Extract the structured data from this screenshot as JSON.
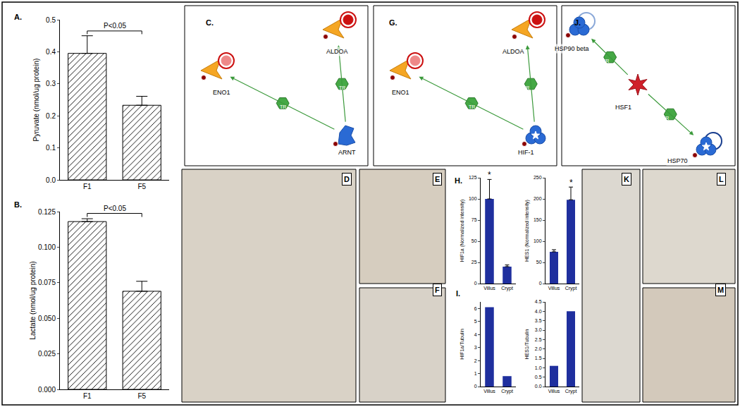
{
  "panel_labels": [
    "A.",
    "B.",
    "C.",
    "D",
    "E",
    "F",
    "G.",
    "H.",
    "I.",
    "J.",
    "K",
    "L",
    "M"
  ],
  "chart_data": [
    {
      "type": "bar",
      "categories": [
        "F1",
        "F5"
      ],
      "values": [
        0.395,
        0.233
      ],
      "errors": [
        0.055,
        0.028
      ],
      "color": "#ffffff",
      "ylabel": "Pyruvate (nmol/ug protein)",
      "ylim": [
        0,
        0.5
      ],
      "yticks": [
        {
          "value": 0,
          "label": "0.0"
        },
        0.1,
        0.2,
        0.3,
        0.4,
        0.5
      ],
      "annotations": [
        {
          "text": "P<0.05",
          "span": [
            "F1",
            "F5"
          ]
        }
      ]
    },
    {
      "type": "bar",
      "categories": [
        "F1",
        "F5"
      ],
      "values": [
        0.118,
        0.069
      ],
      "errors": [
        0.002,
        0.007
      ],
      "color": "#ffffff",
      "ylabel": "Lactate (nmol/ug protein)",
      "ylim": [
        0,
        0.125
      ],
      "yticks": [
        {
          "value": 0,
          "label": "0.000"
        },
        0.025,
        {
          "value": 0.05,
          "label": "0.050"
        },
        0.075,
        {
          "value": 0.1,
          "label": "0.100"
        },
        0.125
      ],
      "annotations": [
        {
          "text": "P<0.05",
          "span": [
            "F1",
            "F5"
          ]
        }
      ]
    },
    {
      "type": "bar",
      "categories": [
        "Villus",
        "Crypt"
      ],
      "values": [
        100,
        20
      ],
      "errors": [
        23,
        2
      ],
      "color": "#1f2f9e",
      "ylabel": "HIF1a (Normalized intensity)",
      "ylim": [
        0,
        125
      ],
      "yticks": [
        0,
        25,
        50,
        75,
        100,
        125
      ],
      "annotations": [
        {
          "text": "*",
          "at": "Villus"
        }
      ]
    },
    {
      "type": "bar",
      "categories": [
        "Villus",
        "Crypt"
      ],
      "values": [
        75,
        198
      ],
      "errors": [
        5,
        30
      ],
      "color": "#1f2f9e",
      "ylabel": "HES1 (Normalized intensity)",
      "ylim": [
        0,
        250
      ],
      "yticks": [
        0,
        50,
        100,
        150,
        200,
        250
      ],
      "annotations": [
        {
          "text": "*",
          "at": "Crypt"
        }
      ]
    },
    {
      "type": "bar",
      "categories": [
        "Villus",
        "Crypt"
      ],
      "values": [
        6.1,
        0.8
      ],
      "color": "#1f2f9e",
      "ylabel": "HIF1a/Tubulin",
      "ylim": [
        0,
        6.5
      ],
      "yticks": [
        0,
        1,
        2,
        3,
        4,
        5,
        6
      ]
    },
    {
      "type": "bar",
      "categories": [
        "Villus",
        "Crypt"
      ],
      "values": [
        1.1,
        4.0
      ],
      "color": "#1f2f9e",
      "ylabel": "HES1/Tubulin",
      "ylim": [
        0,
        4.5
      ],
      "yticks": [
        {
          "value": 0,
          "label": "0.0"
        },
        0.5,
        {
          "value": 1,
          "label": "1.0"
        },
        1.5,
        {
          "value": 2,
          "label": "2.0"
        },
        2.5,
        {
          "value": 3,
          "label": "3.0"
        },
        3.5,
        {
          "value": 4,
          "label": "4.0"
        },
        4.5
      ]
    }
  ],
  "diagrams": [
    {
      "nodes": [
        "ENO1",
        "ALDOA",
        "ARNT"
      ],
      "edges": [
        {
          "from": "ARNT",
          "to": "ENO1",
          "label": "TR"
        },
        {
          "from": "ARNT",
          "to": "ALDOA",
          "label": "TR"
        }
      ]
    },
    {
      "nodes": [
        "ENO1",
        "ALDOA",
        "HIF-1"
      ],
      "edges": [
        {
          "from": "HIF-1",
          "to": "ENO1",
          "label": "TR"
        },
        {
          "from": "HIF-1",
          "to": "ALDOA",
          "label": "TR"
        }
      ]
    },
    {
      "nodes": [
        "HSP90 beta",
        "HSF1",
        "HSP70"
      ],
      "edges": [
        {
          "from": "HSF1",
          "to": "HSP90 beta",
          "label": "TR"
        },
        {
          "from": "HSF1",
          "to": "HSP70",
          "label": "TR"
        }
      ]
    }
  ]
}
